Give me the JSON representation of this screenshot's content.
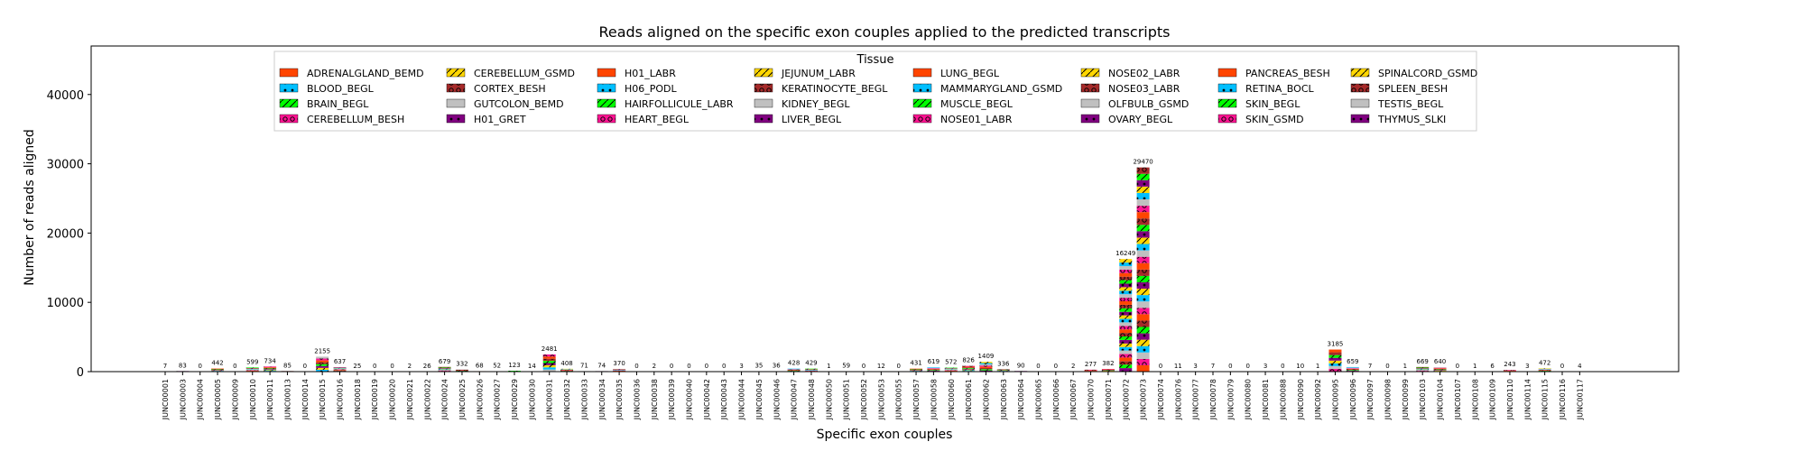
{
  "chart_data": {
    "type": "bar",
    "stacked": true,
    "title": "Reads aligned on the specific exon couples applied to the predicted transcripts",
    "xlabel": "Specific exon couples",
    "ylabel": "Number of reads aligned",
    "ylim": [
      0,
      47000
    ],
    "yticks": [
      0,
      10000,
      20000,
      30000,
      40000
    ],
    "grid": false,
    "legend": {
      "title": "Tissue",
      "placement": "top-center",
      "columns": 8
    },
    "categories": [
      "JUNC00001",
      "JUNC00003",
      "JUNC00004",
      "JUNC00005",
      "JUNC00009",
      "JUNC00010",
      "JUNC00011",
      "JUNC00013",
      "JUNC00014",
      "JUNC00015",
      "JUNC00016",
      "JUNC00018",
      "JUNC00019",
      "JUNC00020",
      "JUNC00021",
      "JUNC00022",
      "JUNC00024",
      "JUNC00025",
      "JUNC00026",
      "JUNC00027",
      "JUNC00029",
      "JUNC00030",
      "JUNC00031",
      "JUNC00032",
      "JUNC00033",
      "JUNC00034",
      "JUNC00035",
      "JUNC00036",
      "JUNC00038",
      "JUNC00039",
      "JUNC00040",
      "JUNC00042",
      "JUNC00043",
      "JUNC00044",
      "JUNC00045",
      "JUNC00046",
      "JUNC00047",
      "JUNC00048",
      "JUNC00050",
      "JUNC00051",
      "JUNC00052",
      "JUNC00053",
      "JUNC00055",
      "JUNC00057",
      "JUNC00058",
      "JUNC00060",
      "JUNC00061",
      "JUNC00062",
      "JUNC00063",
      "JUNC00064",
      "JUNC00065",
      "JUNC00066",
      "JUNC00067",
      "JUNC00070",
      "JUNC00071",
      "JUNC00072",
      "JUNC00073",
      "JUNC00074",
      "JUNC00076",
      "JUNC00077",
      "JUNC00078",
      "JUNC00079",
      "JUNC00080",
      "JUNC00081",
      "JUNC00088",
      "JUNC00090",
      "JUNC00092",
      "JUNC00095",
      "JUNC00096",
      "JUNC00097",
      "JUNC00098",
      "JUNC00099",
      "JUNC00103",
      "JUNC00104",
      "JUNC00107",
      "JUNC00108",
      "JUNC00109",
      "JUNC00110",
      "JUNC00114",
      "JUNC00115",
      "JUNC00116",
      "JUNC00117"
    ],
    "totals": [
      7,
      83,
      0,
      442,
      0,
      599,
      734,
      85,
      0,
      2155,
      637,
      25,
      0,
      0,
      2,
      26,
      679,
      332,
      68,
      52,
      123,
      14,
      2481,
      408,
      71,
      74,
      370,
      0,
      2,
      0,
      0,
      0,
      0,
      3,
      35,
      36,
      428,
      429,
      1,
      59,
      0,
      12,
      0,
      431,
      619,
      572,
      826,
      1409,
      336,
      90,
      0,
      0,
      2,
      277,
      382,
      16249,
      29470,
      0,
      11,
      3,
      7,
      0,
      0,
      3,
      0,
      10,
      1,
      3185,
      659,
      7,
      0,
      1,
      669,
      640,
      0,
      1,
      6,
      243,
      3,
      472,
      0,
      4
    ],
    "tissues": [
      "ADRENALGLAND_BEMD",
      "BLOOD_BEGL",
      "BRAIN_BEGL",
      "CEREBELLUM_BESH",
      "CEREBELLUM_GSMD",
      "CORTEX_BESH",
      "GUTCOLON_BEMD",
      "H01_GRET",
      "H01_LABR",
      "H06_PODL",
      "HAIRFOLLICULE_LABR",
      "HEART_BEGL",
      "JEJUNUM_LABR",
      "KERATINOCYTE_BEGL",
      "KIDNEY_BEGL",
      "LIVER_BEGL",
      "LUNG_BEGL",
      "MAMMARYGLAND_GSMD",
      "MUSCLE_BEGL",
      "NOSE01_LABR",
      "NOSE02_LABR",
      "NOSE03_LABR",
      "OLFBULB_GSMD",
      "OVARY_BEGL",
      "PANCREAS_BESH",
      "RETINA_BOCL",
      "SKIN_BEGL",
      "SKIN_GSMD",
      "SPINALCORD_GSMD",
      "SPLEEN_BESH",
      "TESTIS_BEGL",
      "THYMUS_SLKI"
    ],
    "palette": [
      "#ff4500",
      "#00bfff",
      "#00ff00",
      "#ff1493",
      "#ffd700",
      "#a52a2a",
      "#c0c0c0",
      "#800080"
    ],
    "hatches": [
      "none",
      "dot",
      "slash",
      "ring",
      "slash",
      "ring",
      "none",
      "dot"
    ]
  }
}
